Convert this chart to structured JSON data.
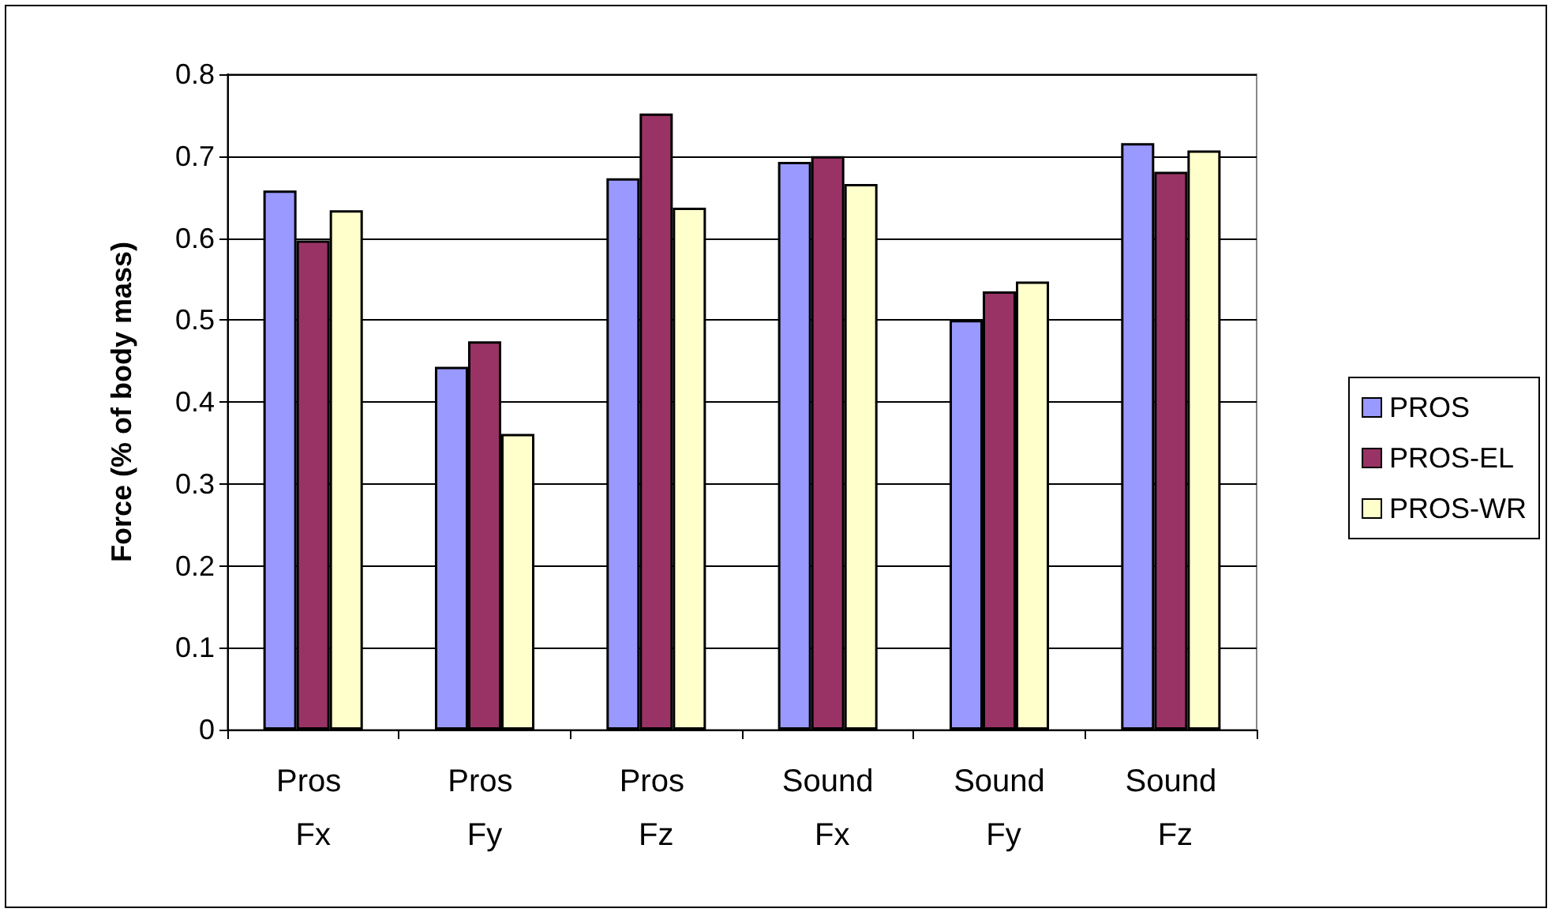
{
  "chart_data": {
    "type": "bar",
    "ylabel": "Force (% of body mass)",
    "categories": [
      "Pros Fx",
      "Pros Fy",
      "Pros Fz",
      "Sound Fx",
      "Sound Fy",
      "Sound Fz"
    ],
    "series": [
      {
        "name": "PROS",
        "color": "#9999ff",
        "values": [
          0.658,
          0.443,
          0.673,
          0.693,
          0.5,
          0.716
        ]
      },
      {
        "name": "PROS-EL",
        "color": "#993366",
        "values": [
          0.597,
          0.474,
          0.752,
          0.7,
          0.535,
          0.681
        ]
      },
      {
        "name": "PROS-WR",
        "color": "#ffffcc",
        "values": [
          0.634,
          0.361,
          0.637,
          0.666,
          0.547,
          0.707
        ]
      }
    ],
    "ylim": [
      0,
      0.8
    ],
    "yticks": [
      0,
      0.1,
      0.2,
      0.3,
      0.4,
      0.5,
      0.6,
      0.7,
      0.8
    ],
    "grid": "y",
    "legend": "right"
  }
}
